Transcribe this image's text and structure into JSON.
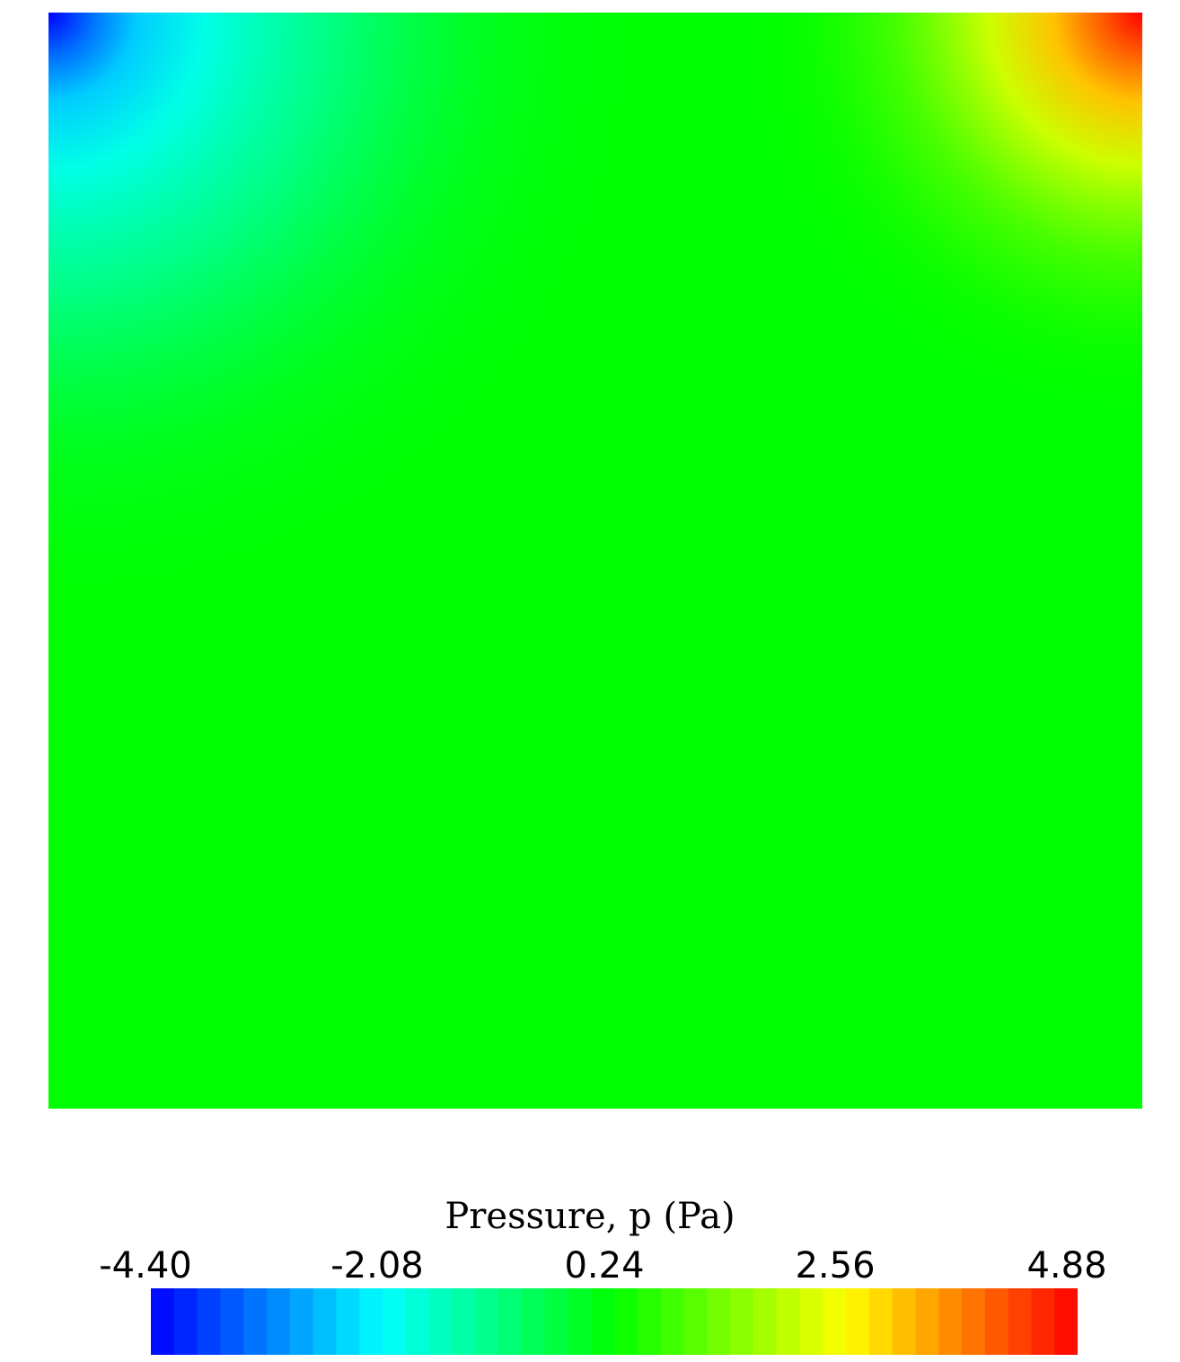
{
  "chart_data": {
    "type": "heatmap",
    "title": "",
    "colorbar": {
      "label": "Pressure, p (Pa)",
      "ticks": [
        "-4.40",
        "-2.08",
        "0.24",
        "2.56",
        "4.88"
      ],
      "range": [
        -4.4,
        4.88
      ],
      "colormap": [
        "#0000ff",
        "#00ffff",
        "#00ff00",
        "#ffff00",
        "#ff0000"
      ],
      "bands": 40
    },
    "field": {
      "background_value": 0.24,
      "extrema": [
        {
          "corner": "top-left",
          "value": -4.4
        },
        {
          "corner": "top-right",
          "value": 4.88
        }
      ]
    }
  }
}
